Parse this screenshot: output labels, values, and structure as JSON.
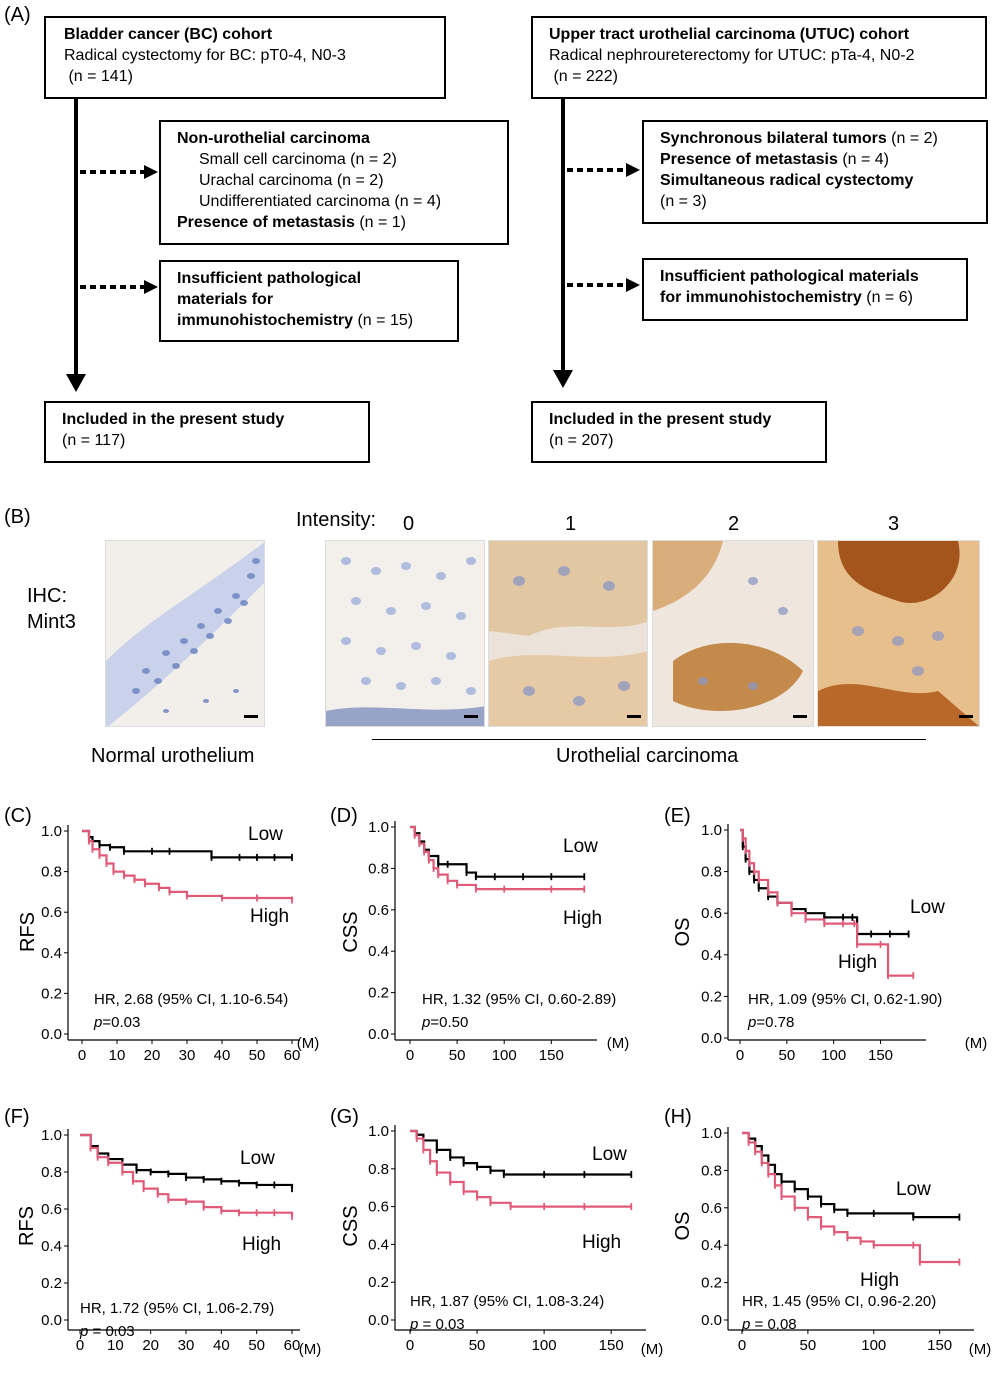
{
  "panel_a": {
    "label": "(A)",
    "left": {
      "top": {
        "title": "Bladder cancer (BC) cohort",
        "line2": "Radical cystectomy for BC: pT0-4, N0-3",
        "line3": " (n = 141)"
      },
      "ex1": {
        "h1": "Non-urothelial carcinoma",
        "i1": "Small cell carcinoma (n = 2)",
        "i2": "Urachal carcinoma (n = 2)",
        "i3": "Undifferentiated carcinoma (n = 4)",
        "h2": "Presence of metastasis",
        "h2n": " (n = 1)"
      },
      "ex2": {
        "l1": "Insufficient pathological",
        "l2": "materials for",
        "l3": "immunohistochemistry",
        "l3n": " (n = 15)"
      },
      "bottom": {
        "title": "Included in the present study",
        "n": "(n = 117)"
      }
    },
    "right": {
      "top": {
        "title": "Upper tract urothelial carcinoma (UTUC) cohort",
        "line2": "Radical nephroureterectomy for UTUC: pTa-4, N0-2",
        "line3": " (n = 222)"
      },
      "ex1": {
        "l1": "Synchronous bilateral tumors",
        "l1n": " (n = 2)",
        "l2": "Presence of metastasis",
        "l2n": " (n = 4)",
        "l3": "Simultaneous radical cystectomy",
        "l4": "(n = 3)"
      },
      "ex2": {
        "l1": "Insufficient pathological materials",
        "l2": "for immunohistochemistry",
        "l2n": " (n = 6)"
      },
      "bottom": {
        "title": "Included in the present study",
        "n": "(n = 207)"
      }
    }
  },
  "panel_b": {
    "label": "(B)",
    "ihc_label_1": "IHC:",
    "ihc_label_2": "Mint3",
    "intensity_label": "Intensity:",
    "intensities": [
      "0",
      "1",
      "2",
      "3"
    ],
    "normal_label": "Normal urothelium",
    "carcinoma_label": "Urothelial carcinoma",
    "colors": {
      "hematoxylin": "#8fa3cf",
      "dab_light": "#e7c9a0",
      "dab_dark": "#b5641f",
      "background": "#f1eee9"
    }
  },
  "colors": {
    "low": "#000000",
    "high": "#e05a78"
  },
  "chart_data": [
    {
      "id": "C",
      "label": "(C)",
      "type": "line",
      "ylabel": "RFS",
      "xunit": "(M)",
      "xlim": [
        0,
        60
      ],
      "ylim": [
        0,
        1
      ],
      "xticks": [
        0,
        10,
        20,
        30,
        40,
        50,
        60
      ],
      "yticks": [
        0.0,
        0.2,
        0.4,
        0.6,
        0.8,
        1.0
      ],
      "hr": "HR, 2.68 (95% CI, 1.10-6.54)",
      "p_italic": "p",
      "p_rest": "=0.03",
      "series": [
        {
          "name": "Low",
          "color": "#000000",
          "x": [
            0,
            2,
            3,
            5,
            8,
            12,
            20,
            25,
            37,
            45,
            50,
            55,
            60
          ],
          "y": [
            1.0,
            0.97,
            0.95,
            0.93,
            0.92,
            0.9,
            0.9,
            0.9,
            0.87,
            0.87,
            0.87,
            0.87,
            0.87
          ]
        },
        {
          "name": "High",
          "color": "#e05a78",
          "x": [
            0,
            2,
            3,
            5,
            7,
            9,
            12,
            15,
            18,
            22,
            25,
            30,
            40,
            50,
            60
          ],
          "y": [
            1.0,
            0.95,
            0.91,
            0.88,
            0.84,
            0.8,
            0.78,
            0.76,
            0.74,
            0.72,
            0.7,
            0.68,
            0.67,
            0.67,
            0.66
          ]
        }
      ]
    },
    {
      "id": "D",
      "label": "(D)",
      "type": "line",
      "ylabel": "CSS",
      "xunit": "(M)",
      "xlim": [
        0,
        190
      ],
      "ylim": [
        0,
        1
      ],
      "xticks": [
        0,
        50,
        100,
        150
      ],
      "yticks": [
        0.0,
        0.2,
        0.4,
        0.6,
        0.8,
        1.0
      ],
      "hr": "HR, 1.32 (95% CI, 0.60-2.89)",
      "p_italic": "p",
      "p_rest": "=0.50",
      "series": [
        {
          "name": "Low",
          "color": "#000000",
          "x": [
            0,
            5,
            10,
            15,
            20,
            30,
            40,
            60,
            70,
            90,
            120,
            150,
            185
          ],
          "y": [
            1.0,
            0.97,
            0.93,
            0.89,
            0.86,
            0.82,
            0.82,
            0.78,
            0.76,
            0.76,
            0.76,
            0.76,
            0.76
          ]
        },
        {
          "name": "High",
          "color": "#e05a78",
          "x": [
            0,
            5,
            10,
            15,
            20,
            25,
            30,
            40,
            50,
            70,
            100,
            150,
            185
          ],
          "y": [
            1.0,
            0.96,
            0.92,
            0.88,
            0.84,
            0.8,
            0.77,
            0.74,
            0.72,
            0.7,
            0.7,
            0.7,
            0.7
          ]
        }
      ]
    },
    {
      "id": "E",
      "label": "(E)",
      "type": "line",
      "ylabel": "OS",
      "xunit": "(M)",
      "xlim": [
        0,
        190
      ],
      "ylim": [
        0,
        1
      ],
      "xticks": [
        0,
        50,
        100,
        150
      ],
      "yticks": [
        0.0,
        0.2,
        0.4,
        0.6,
        0.8,
        1.0
      ],
      "hr": "HR, 1.09 (95% CI, 0.62-1.90)",
      "p_italic": "p",
      "p_rest": "=0.78",
      "series": [
        {
          "name": "Low",
          "color": "#000000",
          "x": [
            0,
            3,
            6,
            10,
            15,
            20,
            30,
            40,
            55,
            70,
            90,
            110,
            120,
            125,
            140,
            160,
            180
          ],
          "y": [
            1.0,
            0.92,
            0.86,
            0.8,
            0.76,
            0.72,
            0.68,
            0.65,
            0.62,
            0.6,
            0.58,
            0.58,
            0.58,
            0.5,
            0.5,
            0.5,
            0.5
          ]
        },
        {
          "name": "High",
          "color": "#e05a78",
          "x": [
            0,
            3,
            6,
            10,
            15,
            20,
            30,
            40,
            55,
            70,
            90,
            110,
            122,
            125,
            150,
            158,
            185
          ],
          "y": [
            1.0,
            0.96,
            0.9,
            0.84,
            0.8,
            0.76,
            0.7,
            0.65,
            0.6,
            0.57,
            0.55,
            0.55,
            0.55,
            0.45,
            0.45,
            0.3,
            0.3
          ]
        }
      ]
    },
    {
      "id": "F",
      "label": "(F)",
      "type": "line",
      "ylabel": "RFS",
      "xunit": "(M)",
      "xlim": [
        0,
        60
      ],
      "ylim": [
        0,
        1
      ],
      "xticks": [
        0,
        10,
        20,
        30,
        40,
        50,
        60
      ],
      "yticks": [
        0.0,
        0.2,
        0.4,
        0.6,
        0.8,
        1.0
      ],
      "hr": "HR, 1.72 (95% CI, 1.06-2.79)",
      "p_italic": "p",
      "p_rest": " = 0.03",
      "series": [
        {
          "name": "Low",
          "color": "#000000",
          "x": [
            0,
            3,
            5,
            8,
            12,
            16,
            20,
            25,
            30,
            35,
            40,
            45,
            50,
            55,
            60
          ],
          "y": [
            1.0,
            0.94,
            0.9,
            0.87,
            0.84,
            0.81,
            0.8,
            0.79,
            0.77,
            0.76,
            0.75,
            0.74,
            0.73,
            0.73,
            0.71
          ]
        },
        {
          "name": "High",
          "color": "#e05a78",
          "x": [
            0,
            3,
            5,
            8,
            12,
            15,
            18,
            22,
            25,
            30,
            35,
            40,
            45,
            50,
            55,
            60
          ],
          "y": [
            1.0,
            0.93,
            0.88,
            0.85,
            0.8,
            0.75,
            0.71,
            0.68,
            0.65,
            0.64,
            0.61,
            0.59,
            0.58,
            0.58,
            0.58,
            0.56
          ]
        }
      ]
    },
    {
      "id": "G",
      "label": "(G)",
      "type": "line",
      "ylabel": "CSS",
      "xunit": "(M)",
      "xlim": [
        0,
        170
      ],
      "ylim": [
        0,
        1
      ],
      "xticks": [
        0,
        50,
        100,
        150
      ],
      "yticks": [
        0.0,
        0.2,
        0.4,
        0.6,
        0.8,
        1.0
      ],
      "hr": "HR, 1.87 (95% CI, 1.08-3.24)",
      "p_italic": "p",
      "p_rest": " = 0.03",
      "series": [
        {
          "name": "Low",
          "color": "#000000",
          "x": [
            0,
            5,
            10,
            20,
            30,
            40,
            50,
            60,
            70,
            100,
            130,
            165
          ],
          "y": [
            1.0,
            0.98,
            0.95,
            0.9,
            0.86,
            0.83,
            0.81,
            0.79,
            0.77,
            0.77,
            0.77,
            0.77
          ]
        },
        {
          "name": "High",
          "color": "#e05a78",
          "x": [
            0,
            5,
            10,
            15,
            20,
            30,
            40,
            50,
            60,
            75,
            100,
            130,
            165
          ],
          "y": [
            1.0,
            0.96,
            0.9,
            0.84,
            0.78,
            0.73,
            0.68,
            0.65,
            0.62,
            0.6,
            0.6,
            0.6,
            0.6
          ]
        }
      ]
    },
    {
      "id": "H",
      "label": "(H)",
      "type": "line",
      "ylabel": "OS",
      "xunit": "(M)",
      "xlim": [
        0,
        170
      ],
      "ylim": [
        0,
        1
      ],
      "xticks": [
        0,
        50,
        100,
        150
      ],
      "yticks": [
        0.0,
        0.2,
        0.4,
        0.6,
        0.8,
        1.0
      ],
      "hr": "HR, 1.45 (95% CI, 0.96-2.20)",
      "p_italic": "p",
      "p_rest": " = 0.08",
      "series": [
        {
          "name": "Low",
          "color": "#000000",
          "x": [
            0,
            5,
            10,
            15,
            20,
            25,
            30,
            40,
            50,
            60,
            70,
            80,
            100,
            130,
            165
          ],
          "y": [
            1.0,
            0.97,
            0.93,
            0.88,
            0.83,
            0.78,
            0.74,
            0.7,
            0.66,
            0.62,
            0.59,
            0.57,
            0.57,
            0.55,
            0.55
          ]
        },
        {
          "name": "High",
          "color": "#e05a78",
          "x": [
            0,
            5,
            10,
            15,
            20,
            25,
            30,
            40,
            50,
            60,
            70,
            80,
            90,
            100,
            130,
            135,
            165
          ],
          "y": [
            1.0,
            0.95,
            0.9,
            0.84,
            0.78,
            0.72,
            0.66,
            0.6,
            0.55,
            0.5,
            0.47,
            0.44,
            0.42,
            0.4,
            0.4,
            0.31,
            0.31
          ]
        }
      ]
    }
  ]
}
